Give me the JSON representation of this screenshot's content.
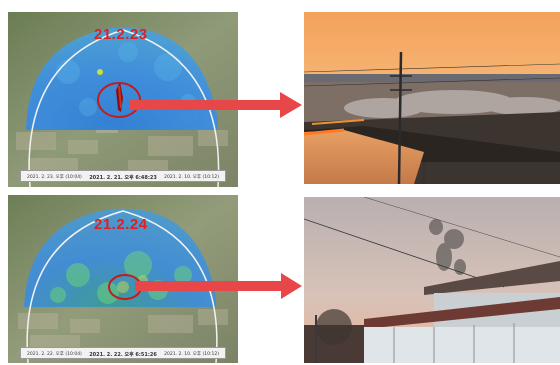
{
  "panels": [
    {
      "date_label": "21.2.23",
      "timebar": {
        "left": "2021. 2. 23. 오후 (10:04)",
        "main": "2021. 2. 21. 오후 6:48:23",
        "right": "2021. 2. 10. 오후 (10:12)"
      }
    },
    {
      "date_label": "21.2.24",
      "timebar": {
        "left": "2021. 2. 22. 오후 (10:04)",
        "main": "2021. 2. 22. 오후 6:51:26",
        "right": "2021. 2. 10. 오후 (10:12)"
      }
    }
  ],
  "colors": {
    "arrow": "#e8474a",
    "highlight_circle": "#c41b1b",
    "date_label": "#e02020"
  }
}
